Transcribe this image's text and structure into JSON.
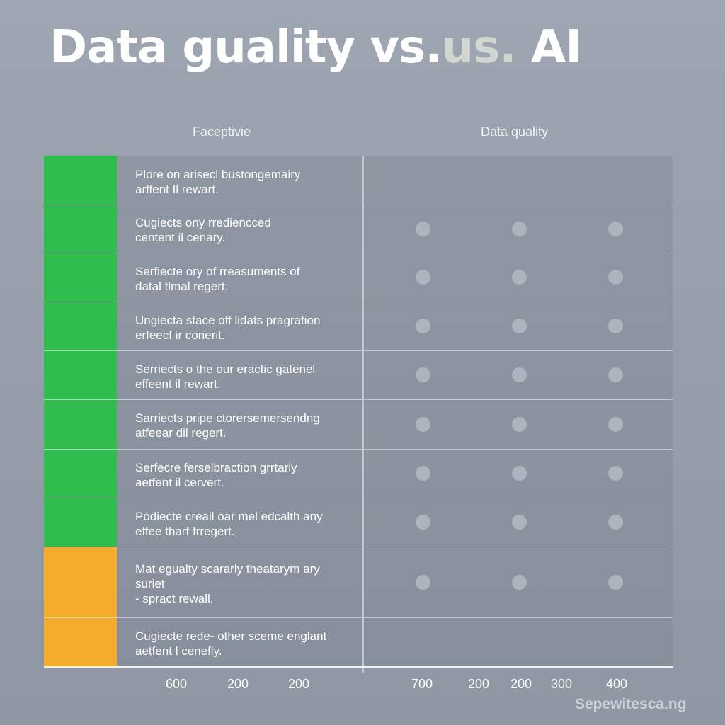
{
  "title": {
    "main": "Data guality vs.",
    "accent": "us.",
    "tail": " AI"
  },
  "column_headers": {
    "left": "Faceptivie",
    "right": "Data quality"
  },
  "colors": {
    "green": "#2fbe4e",
    "orange": "#f3ad2a",
    "dot": "#aeb4bd",
    "background": "#98a0ac"
  },
  "chart_data": {
    "type": "table",
    "title": "Data guality vs.us. AI",
    "columns": [
      "Faceptivie",
      "Data quality"
    ],
    "rows": [
      {
        "category": "green",
        "line1": "Plore on arisecl bustongemairy",
        "line2": "arffent Il rewart.",
        "dots": 0
      },
      {
        "category": "green",
        "line1": "Cugiects ony rrediencced",
        "line2": "centent il cenary.",
        "dots": 3
      },
      {
        "category": "green",
        "line1": "Serfiecte ory of rreasuments of",
        "line2": "datal tlmal regert.",
        "dots": 3
      },
      {
        "category": "green",
        "line1": "Ungiecta stace off lidats pragration",
        "line2": "erfeecf ir conerit.",
        "dots": 3
      },
      {
        "category": "green",
        "line1": "Serriects o the our eractic gatenel",
        "line2": "effeent il rewart.",
        "dots": 3
      },
      {
        "category": "green",
        "line1": "Sarriects pripe ctorersemersendng",
        "line2": "atfeear dil regert.",
        "dots": 3
      },
      {
        "category": "green",
        "line1": "Serfecre ferselbraction grrtarly",
        "line2": "aetfent il cervert.",
        "dots": 3
      },
      {
        "category": "green",
        "line1": "Podiecte creail oar mel edcalth any",
        "line2": "effee tharf frregert.",
        "dots": 3
      },
      {
        "category": "orange",
        "line1": "Mat egualty scararly theatarym ary",
        "line2": "suriet",
        "line3": "- spract rewall,",
        "dots": 3
      },
      {
        "category": "orange",
        "line1": "Cugiecte rede- other sceme englant",
        "line2": "aetfent l cenefly.",
        "dots": 0
      }
    ],
    "x_tick_labels": [
      "600",
      "200",
      "200",
      "700",
      "200",
      "200",
      "300",
      "400"
    ]
  },
  "watermark": "Sepewitesca.ng"
}
